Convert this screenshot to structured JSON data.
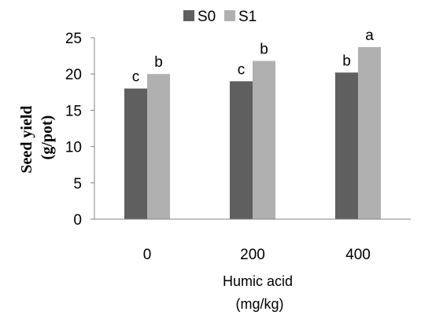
{
  "chart_data": {
    "type": "bar",
    "categories": [
      "0",
      "200",
      "400"
    ],
    "series": [
      {
        "name": "S0",
        "values": [
          18.0,
          19.0,
          20.2
        ],
        "labels": [
          "c",
          "c",
          "b"
        ],
        "color": "#5f5f5f"
      },
      {
        "name": "S1",
        "values": [
          20.0,
          21.8,
          23.7
        ],
        "labels": [
          "b",
          "b",
          "a"
        ],
        "color": "#b0b0b0"
      }
    ],
    "ylim": [
      0,
      25
    ],
    "yticks": [
      0,
      5,
      10,
      15,
      20,
      25
    ],
    "ylabel_lines": [
      "Seed yield",
      "(g/pot)"
    ],
    "xlabel_lines": [
      "Humic acid",
      "(mg/kg)"
    ],
    "grid": false,
    "legend_position": "top"
  }
}
